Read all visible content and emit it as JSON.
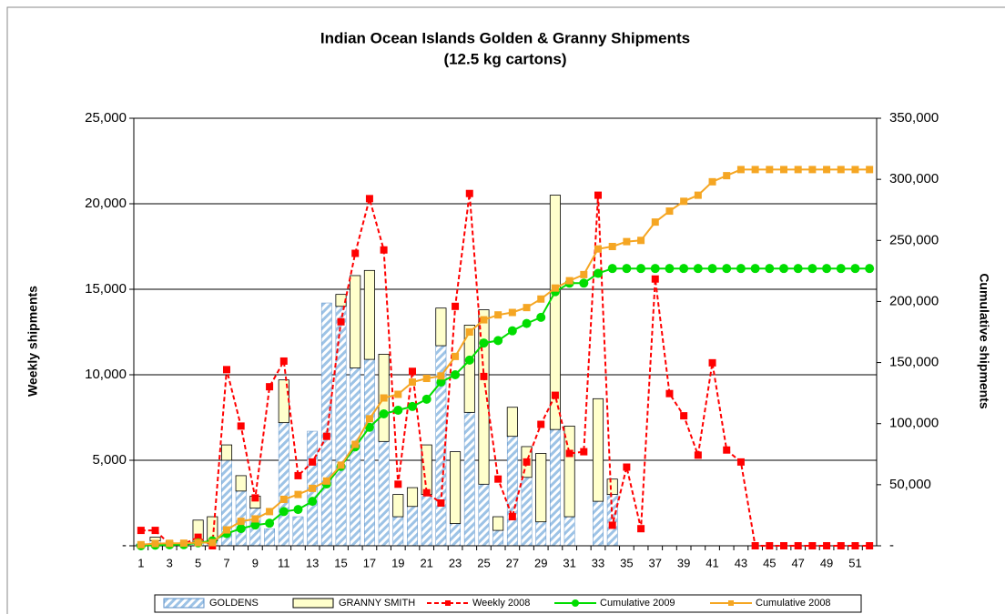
{
  "chart_data": {
    "type": "combo",
    "title": "Indian Ocean Islands Golden & Granny Shipments",
    "subtitle": "(12.5 kg cartons)",
    "y_label": "Weekly shipments",
    "y2_label": "Cumulative shipments",
    "categories": [
      1,
      null,
      3,
      null,
      5,
      null,
      7,
      null,
      9,
      null,
      11,
      null,
      13,
      null,
      15,
      null,
      17,
      null,
      19,
      null,
      21,
      null,
      23,
      null,
      25,
      null,
      27,
      null,
      29,
      null,
      31,
      null,
      33,
      null,
      35,
      null,
      37,
      null,
      39,
      null,
      41,
      null,
      43,
      null,
      45,
      null,
      47,
      null,
      49,
      null,
      51,
      null
    ],
    "ylim": [
      0,
      25000
    ],
    "yticks": [
      {
        "value": 0,
        "label": "-"
      },
      {
        "value": 5000,
        "label": "5,000"
      },
      {
        "value": 10000,
        "label": "10,000"
      },
      {
        "value": 15000,
        "label": "15,000"
      },
      {
        "value": 20000,
        "label": "20,000"
      },
      {
        "value": 25000,
        "label": "25,000"
      }
    ],
    "y2lim": [
      0,
      350000
    ],
    "y2ticks": [
      {
        "value": 0,
        "label": "-"
      },
      {
        "value": 50000,
        "label": "50,000"
      },
      {
        "value": 100000,
        "label": "100,000"
      },
      {
        "value": 150000,
        "label": "150,000"
      },
      {
        "value": 200000,
        "label": "200,000"
      },
      {
        "value": 250000,
        "label": "250,000"
      },
      {
        "value": 300000,
        "label": "300,000"
      },
      {
        "value": 350000,
        "label": "350,000"
      }
    ],
    "grid": true,
    "legend": "bottom",
    "series": [
      {
        "name": "GOLDENS",
        "kind": "bar",
        "color": "#9dc3e6",
        "values": [
          100,
          300,
          0,
          100,
          200,
          300,
          5000,
          3200,
          2200,
          1000,
          7200,
          1700,
          6700,
          14200,
          14000,
          10400,
          10900,
          6100,
          1700,
          2300,
          3000,
          11700,
          1300,
          7800,
          3600,
          900,
          6400,
          4000,
          1400,
          6800,
          1700,
          0,
          2600,
          3000,
          null,
          null,
          null,
          null,
          null,
          null,
          null,
          null,
          null,
          null,
          null,
          null,
          null,
          null,
          null,
          null,
          null,
          null
        ]
      },
      {
        "name": "GRANNY SMITH",
        "kind": "bar",
        "color": "#ffffcc",
        "values": [
          0,
          200,
          100,
          0,
          1300,
          1400,
          900,
          900,
          700,
          0,
          2500,
          0,
          0,
          0,
          700,
          5400,
          5200,
          5100,
          1300,
          1100,
          2900,
          2200,
          4200,
          5100,
          10200,
          800,
          1700,
          1800,
          4000,
          13700,
          5300,
          0,
          6000,
          900,
          null,
          null,
          null,
          null,
          null,
          null,
          null,
          null,
          null,
          null,
          null,
          null,
          null,
          null,
          null,
          null,
          null,
          null
        ]
      },
      {
        "name": "Weekly 2008",
        "kind": "line",
        "color": "#ff0000",
        "dash": true,
        "marker": "square",
        "values": [
          900,
          900,
          100,
          100,
          500,
          0,
          10300,
          7000,
          2800,
          9300,
          10800,
          4100,
          4900,
          6400,
          13100,
          17100,
          20300,
          17300,
          3600,
          10200,
          3100,
          2500,
          14000,
          20600,
          9900,
          3900,
          1700,
          4900,
          7100,
          8800,
          5400,
          5500,
          20500,
          1200,
          4600,
          1000,
          15600,
          8900,
          7600,
          5300,
          10700,
          5600,
          4900,
          0,
          0,
          0,
          0,
          0,
          0,
          0,
          0,
          0
        ]
      },
      {
        "name": "Cumulative 2009",
        "kind": "line",
        "axis": "y2",
        "color": "#00dd00",
        "marker": "circle",
        "values": [
          0,
          500,
          800,
          900,
          2400,
          4100,
          10000,
          14100,
          17000,
          18500,
          28000,
          29700,
          36400,
          50600,
          65000,
          81000,
          97000,
          108000,
          111000,
          114000,
          120000,
          134000,
          140000,
          152000,
          166000,
          168000,
          176000,
          182000,
          187000,
          208000,
          215000,
          215000,
          223000,
          227000,
          227000,
          227000,
          227000,
          227000,
          227000,
          227000,
          227000,
          227000,
          227000,
          227000,
          227000,
          227000,
          227000,
          227000,
          227000,
          227000,
          227000,
          227000
        ]
      },
      {
        "name": "Cumulative 2008",
        "kind": "line",
        "axis": "y2",
        "color": "#f5a623",
        "marker": "square",
        "values": [
          900,
          1800,
          2000,
          2100,
          2600,
          2600,
          13000,
          20000,
          22000,
          28000,
          38000,
          42000,
          47000,
          53000,
          66000,
          83000,
          104000,
          121000,
          124000,
          134000,
          137000,
          139000,
          155000,
          175000,
          185000,
          189000,
          191000,
          195000,
          202000,
          211000,
          217000,
          222000,
          243000,
          245000,
          249000,
          250000,
          265000,
          274000,
          282000,
          287000,
          298000,
          303000,
          308000,
          308000,
          308000,
          308000,
          308000,
          308000,
          308000,
          308000,
          308000,
          308000
        ]
      }
    ]
  }
}
